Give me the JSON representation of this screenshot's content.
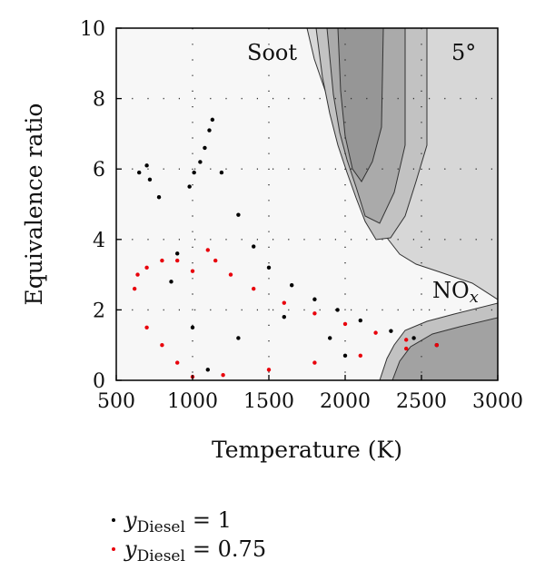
{
  "chart_data": {
    "type": "scatter",
    "xlabel": "Temperature (K)",
    "ylabel": "Equivalence ratio",
    "xlim": [
      500,
      3000
    ],
    "ylim": [
      0,
      10
    ],
    "xticks": [
      "500",
      "1000",
      "1500",
      "2000",
      "2500",
      "3000"
    ],
    "yticks": [
      "0",
      "2",
      "4",
      "6",
      "8",
      "10"
    ],
    "grid": true,
    "annotations": {
      "soot": "Soot",
      "angle": "5°",
      "nox_main": "NO",
      "nox_sub": "x"
    },
    "series": [
      {
        "name": "y_Diesel = 1",
        "legend_var": "y",
        "legend_sub": "Diesel",
        "legend_value": "= 1",
        "color": "#000000",
        "points": [
          [
            1130,
            7.4
          ],
          [
            1110,
            7.1
          ],
          [
            1080,
            6.6
          ],
          [
            1050,
            6.2
          ],
          [
            1010,
            5.9
          ],
          [
            980,
            5.5
          ],
          [
            700,
            6.1
          ],
          [
            720,
            5.7
          ],
          [
            650,
            5.9
          ],
          [
            780,
            5.2
          ],
          [
            1190,
            5.9
          ],
          [
            1300,
            4.7
          ],
          [
            1400,
            3.8
          ],
          [
            1500,
            3.2
          ],
          [
            1650,
            2.7
          ],
          [
            1800,
            2.3
          ],
          [
            1950,
            2.0
          ],
          [
            2100,
            1.7
          ],
          [
            2300,
            1.4
          ],
          [
            2450,
            1.2
          ],
          [
            2600,
            1.0
          ],
          [
            900,
            3.6
          ],
          [
            860,
            2.8
          ],
          [
            1000,
            1.5
          ],
          [
            1100,
            0.3
          ],
          [
            1300,
            1.2
          ],
          [
            1600,
            1.8
          ],
          [
            1900,
            1.2
          ],
          [
            2000,
            0.7
          ]
        ]
      },
      {
        "name": "y_Diesel = 0.75",
        "legend_var": "y",
        "legend_sub": "Diesel",
        "legend_value": "= 0.75",
        "color": "#e8000b",
        "points": [
          [
            620,
            2.6
          ],
          [
            640,
            3.0
          ],
          [
            700,
            3.2
          ],
          [
            800,
            3.4
          ],
          [
            900,
            3.4
          ],
          [
            1000,
            3.1
          ],
          [
            1100,
            3.7
          ],
          [
            1150,
            3.4
          ],
          [
            1250,
            3.0
          ],
          [
            1400,
            2.6
          ],
          [
            1600,
            2.2
          ],
          [
            1800,
            1.9
          ],
          [
            2000,
            1.6
          ],
          [
            2200,
            1.35
          ],
          [
            2400,
            1.15
          ],
          [
            2600,
            1.0
          ],
          [
            1000,
            0.1
          ],
          [
            1200,
            0.15
          ],
          [
            1500,
            0.3
          ],
          [
            1800,
            0.5
          ],
          [
            2100,
            0.7
          ],
          [
            2400,
            0.9
          ],
          [
            700,
            1.5
          ],
          [
            800,
            1.0
          ],
          [
            900,
            0.5
          ]
        ]
      }
    ]
  }
}
